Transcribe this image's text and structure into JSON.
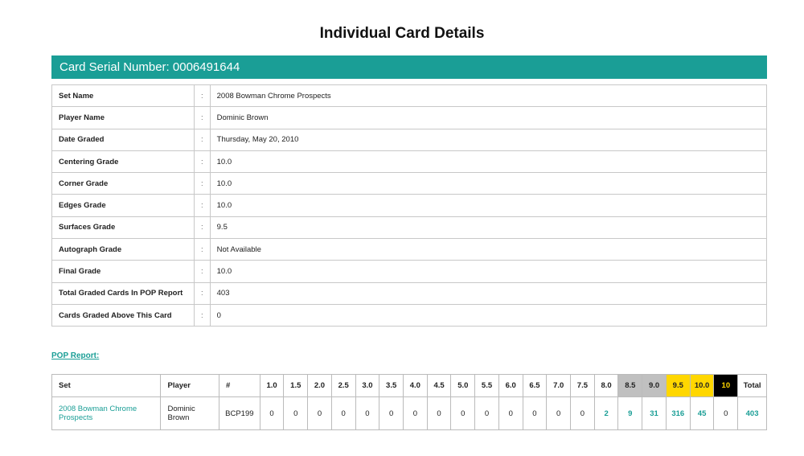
{
  "page_title": "Individual Card Details",
  "serial_label": "Card Serial Number: 0006491644",
  "details": [
    {
      "label": "Set Name",
      "value": "2008 Bowman Chrome Prospects"
    },
    {
      "label": "Player Name",
      "value": "Dominic Brown"
    },
    {
      "label": "Date Graded",
      "value": "Thursday, May 20, 2010"
    },
    {
      "label": "Centering Grade",
      "value": "10.0"
    },
    {
      "label": "Corner Grade",
      "value": "10.0"
    },
    {
      "label": "Edges Grade",
      "value": "10.0"
    },
    {
      "label": "Surfaces Grade",
      "value": "9.5"
    },
    {
      "label": "Autograph Grade",
      "value": "Not Available"
    },
    {
      "label": "Final Grade",
      "value": "10.0"
    },
    {
      "label": "Total Graded Cards In POP Report",
      "value": "403"
    },
    {
      "label": "Cards Graded Above This Card",
      "value": "0"
    }
  ],
  "separator": ":",
  "pop_report_link": "POP Report:",
  "pop": {
    "headers": [
      "Set",
      "Player",
      "#",
      "1.0",
      "1.5",
      "2.0",
      "2.5",
      "3.0",
      "3.5",
      "4.0",
      "4.5",
      "5.0",
      "5.5",
      "6.0",
      "6.5",
      "7.0",
      "7.5",
      "8.0",
      "8.5",
      "9.0",
      "9.5",
      "10.0",
      "10",
      "Total"
    ],
    "row": {
      "set": "2008 Bowman Chrome Prospects",
      "player": "Dominic Brown",
      "number": "BCP199",
      "counts": [
        "0",
        "0",
        "0",
        "0",
        "0",
        "0",
        "0",
        "0",
        "0",
        "0",
        "0",
        "0",
        "0",
        "0",
        "2",
        "9",
        "31",
        "316",
        "45",
        "0"
      ],
      "total": "403"
    },
    "colors": {
      "gray": "#c0c0c0",
      "gold": "#ffd700",
      "black": "#000000",
      "accent": "#1a9e96"
    }
  }
}
